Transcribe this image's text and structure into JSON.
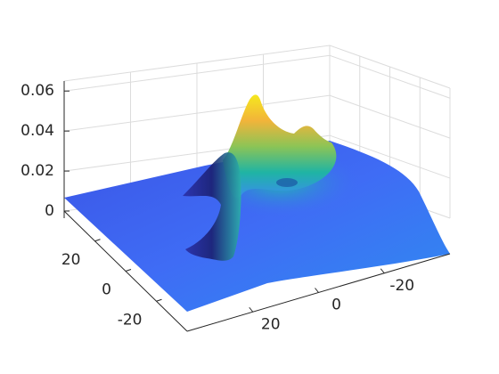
{
  "chart_data": {
    "type": "surface",
    "xlim": [
      -40,
      40
    ],
    "xticks": [
      20,
      0,
      -20
    ],
    "ylim": [
      -40,
      40
    ],
    "yticks": [
      20,
      0,
      -20
    ],
    "zlim": [
      0,
      0.065
    ],
    "zticks": [
      0,
      0.02,
      0.04,
      0.06
    ],
    "grid": true
  }
}
